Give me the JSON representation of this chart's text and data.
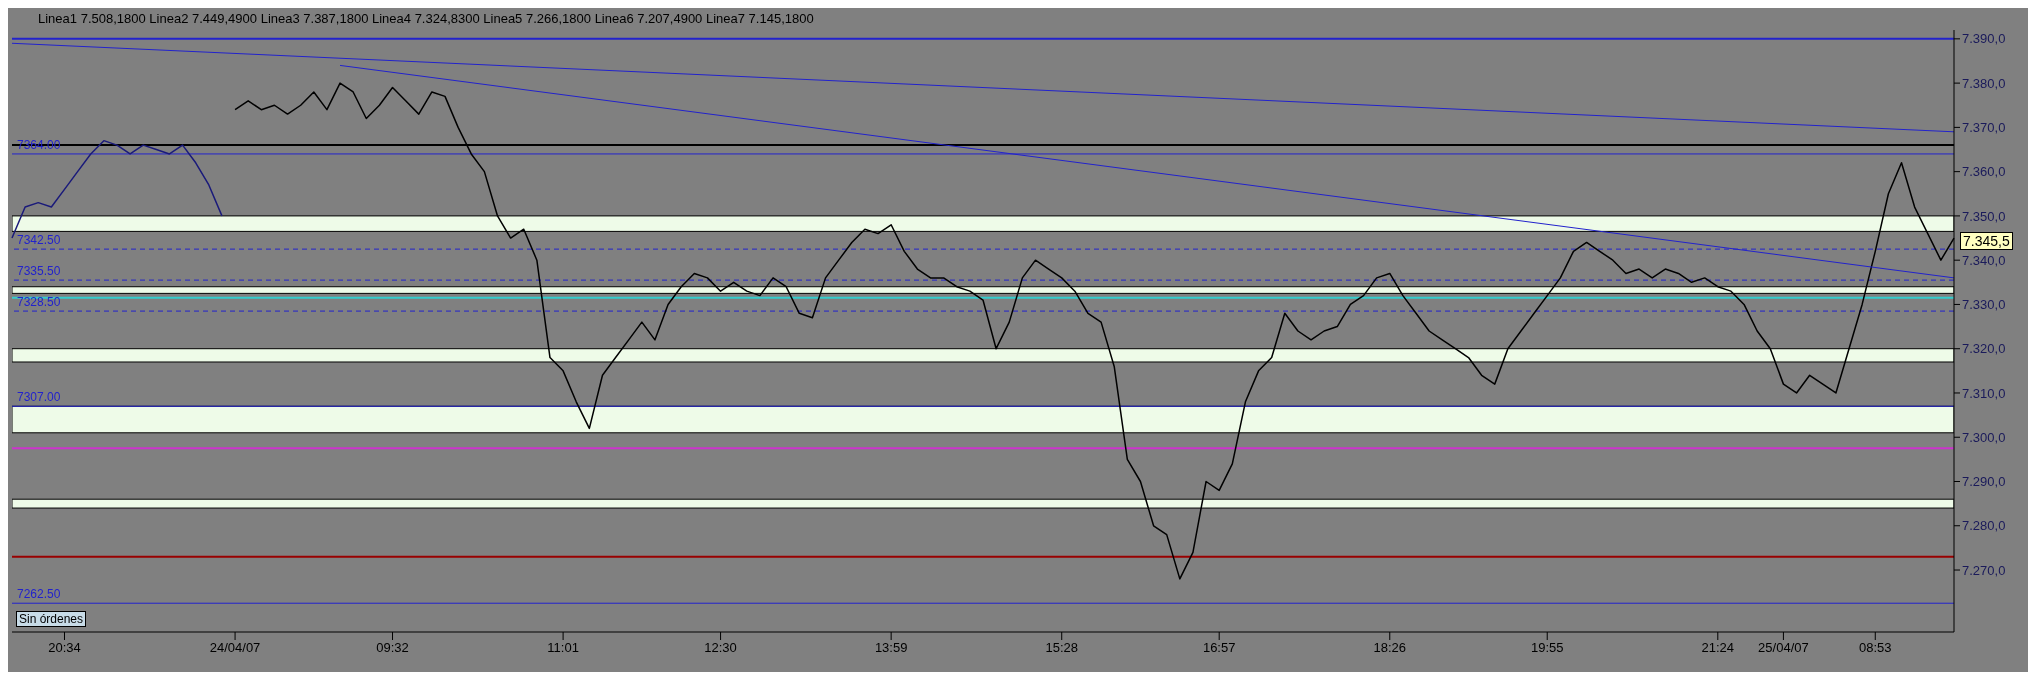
{
  "chart_data": {
    "type": "line",
    "categories": [
      null,
      null,
      null,
      null,
      "20:34",
      null,
      null,
      null,
      null,
      null,
      null,
      null,
      null,
      null,
      null,
      null,
      null,
      "24/04/07",
      null,
      null,
      null,
      null,
      null,
      null,
      null,
      null,
      null,
      null,
      null,
      "09:32",
      null,
      null,
      null,
      null,
      null,
      null,
      null,
      null,
      null,
      null,
      null,
      null,
      "11:01",
      null,
      null,
      null,
      null,
      null,
      null,
      null,
      null,
      null,
      null,
      null,
      "12:30",
      null,
      null,
      null,
      null,
      null,
      null,
      null,
      null,
      null,
      null,
      null,
      null,
      "13:59",
      null,
      null,
      null,
      null,
      null,
      null,
      null,
      null,
      null,
      null,
      null,
      null,
      "15:28",
      null,
      null,
      null,
      null,
      null,
      null,
      null,
      null,
      null,
      null,
      null,
      "16:57",
      null,
      null,
      null,
      null,
      null,
      null,
      null,
      null,
      null,
      null,
      null,
      null,
      "18:26",
      null,
      null,
      null,
      null,
      null,
      null,
      null,
      null,
      null,
      null,
      null,
      "19:55",
      null,
      null,
      null,
      null,
      null,
      null,
      null,
      null,
      null,
      null,
      null,
      null,
      "21:24",
      null,
      null,
      null,
      null,
      "25/04/07",
      null,
      null,
      null,
      null,
      null,
      null,
      "08:53",
      null,
      null,
      null,
      null,
      null,
      null
    ],
    "series": [
      {
        "color": "#1a1a7a",
        "values": [
          7345,
          7352,
          7353,
          7352,
          7356,
          7360,
          7364,
          7367,
          7366,
          7364,
          7366,
          7365,
          7364,
          7366,
          7362,
          7357,
          7350,
          null,
          null,
          null,
          null,
          null,
          null,
          null,
          null,
          null,
          null,
          null,
          null,
          null,
          null,
          null,
          null,
          null,
          null,
          null,
          null,
          null,
          null,
          null,
          null,
          null,
          null,
          null,
          null,
          null,
          null,
          null,
          null,
          null,
          null,
          null,
          null,
          null,
          null,
          null,
          null,
          null,
          null,
          null,
          null,
          null,
          null,
          null,
          null,
          null,
          null,
          null,
          null,
          null,
          null,
          null,
          null,
          null,
          null,
          null,
          null,
          null,
          null,
          null,
          null,
          null,
          null,
          null,
          null,
          null,
          null,
          null,
          null,
          null,
          null,
          null,
          null,
          null,
          null,
          null,
          null,
          null,
          null,
          null,
          null,
          null,
          null,
          null,
          null,
          null,
          null,
          null,
          null,
          null,
          null,
          null,
          null,
          null,
          null,
          null,
          null,
          null,
          null,
          null,
          null,
          null,
          null,
          null,
          null,
          null,
          null,
          null,
          null,
          null,
          null,
          null,
          null,
          null,
          null,
          null,
          null,
          null,
          null,
          null,
          null,
          null,
          null,
          null,
          null,
          null,
          null,
          null,
          null
        ]
      },
      {
        "color": "#000000",
        "values": [
          null,
          null,
          null,
          null,
          null,
          null,
          null,
          null,
          null,
          null,
          null,
          null,
          null,
          null,
          null,
          null,
          null,
          7374,
          7376,
          7374,
          7375,
          7373,
          7375,
          7378,
          7374,
          7380,
          7378,
          7372,
          7375,
          7379,
          7376,
          7373,
          7378,
          7377,
          7370,
          7364,
          7360,
          7350,
          7345,
          7347,
          7340,
          7318,
          7315,
          7308,
          7302,
          7314,
          7318,
          7322,
          7326,
          7322,
          7330,
          7334,
          7337,
          7336,
          7333,
          7335,
          7333,
          7332,
          7336,
          7334,
          7328,
          7327,
          7336,
          7340,
          7344,
          7347,
          7346,
          7348,
          7342,
          7338,
          7336,
          7336,
          7334,
          7333,
          7331,
          7320,
          7326,
          7336,
          7340,
          7338,
          7336,
          7333,
          7328,
          7326,
          7316,
          7295,
          7290,
          7280,
          7278,
          7268,
          7274,
          7290,
          7288,
          7294,
          7308,
          7315,
          7318,
          7328,
          7324,
          7322,
          7324,
          7325,
          7330,
          7332,
          7336,
          7337,
          7332,
          7328,
          7324,
          7322,
          7320,
          7318,
          7314,
          7312,
          7320,
          7324,
          7328,
          7332,
          7336,
          7342,
          7344,
          7342,
          7340,
          7337,
          7338,
          7336,
          7338,
          7337,
          7335,
          7336,
          7334,
          7333,
          7330,
          7324,
          7320,
          7312,
          7310,
          7314,
          7312,
          7310,
          7320,
          7330,
          7342,
          7355,
          7362,
          7352,
          7346,
          7340,
          7345
        ]
      },
      {
        "color": "#2222cc",
        "values": [
          7389,
          null,
          null,
          null,
          null,
          null,
          null,
          null,
          null,
          null,
          null,
          null,
          null,
          null,
          null,
          null,
          null,
          null,
          null,
          null,
          null,
          null,
          null,
          null,
          null,
          null,
          null,
          null,
          null,
          null,
          null,
          null,
          null,
          null,
          null,
          null,
          null,
          null,
          null,
          null,
          null,
          null,
          null,
          null,
          null,
          null,
          null,
          null,
          null,
          null,
          null,
          null,
          null,
          null,
          null,
          null,
          null,
          null,
          null,
          null,
          null,
          null,
          null,
          null,
          null,
          null,
          null,
          null,
          null,
          null,
          null,
          null,
          null,
          null,
          null,
          null,
          null,
          null,
          null,
          null,
          null,
          null,
          null,
          null,
          null,
          null,
          null,
          null,
          null,
          null,
          null,
          null,
          null,
          null,
          null,
          null,
          null,
          null,
          null,
          null,
          null,
          null,
          null,
          null,
          null,
          null,
          null,
          null,
          null,
          null,
          null,
          null,
          null,
          null,
          null,
          null,
          null,
          null,
          null,
          null,
          null,
          null,
          null,
          null,
          null,
          null,
          null,
          null,
          null,
          null,
          null,
          null,
          null,
          null,
          null,
          null,
          null,
          null,
          null,
          null,
          null,
          null,
          null,
          null,
          null,
          null,
          null,
          null,
          7369
        ]
      },
      {
        "color": "#2222cc",
        "values": [
          null,
          null,
          null,
          null,
          null,
          null,
          null,
          null,
          null,
          null,
          null,
          null,
          null,
          null,
          null,
          null,
          null,
          null,
          null,
          null,
          null,
          null,
          null,
          null,
          null,
          7384,
          null,
          null,
          null,
          null,
          null,
          null,
          null,
          null,
          null,
          null,
          null,
          null,
          null,
          null,
          null,
          null,
          null,
          null,
          null,
          null,
          null,
          null,
          null,
          null,
          null,
          null,
          null,
          null,
          null,
          null,
          null,
          null,
          null,
          null,
          null,
          null,
          null,
          null,
          null,
          null,
          null,
          null,
          null,
          null,
          null,
          null,
          null,
          null,
          null,
          null,
          null,
          null,
          null,
          null,
          null,
          null,
          null,
          null,
          null,
          null,
          null,
          null,
          null,
          null,
          null,
          null,
          null,
          null,
          null,
          null,
          null,
          null,
          null,
          null,
          null,
          null,
          null,
          null,
          null,
          null,
          null,
          null,
          null,
          null,
          null,
          null,
          null,
          null,
          null,
          null,
          null,
          null,
          null,
          null,
          null,
          null,
          null,
          null,
          null,
          null,
          null,
          null,
          null,
          null,
          null,
          null,
          null,
          null,
          null,
          null,
          null,
          null,
          null,
          null,
          null,
          null,
          null,
          null,
          null,
          null,
          null,
          null,
          7336
        ]
      }
    ],
    "ylim": [
      7256,
      7392
    ],
    "yticks": [
      {
        "value": 7270,
        "label": "7.270,0"
      },
      {
        "value": 7280,
        "label": "7.280,0"
      },
      {
        "value": 7290,
        "label": "7.290,0"
      },
      {
        "value": 7300,
        "label": "7.300,0"
      },
      {
        "value": 7310,
        "label": "7.310,0"
      },
      {
        "value": 7320,
        "label": "7.320,0"
      },
      {
        "value": 7330,
        "label": "7.330,0"
      },
      {
        "value": 7340,
        "label": "7.340,0"
      },
      {
        "value": 7350,
        "label": "7.350,0"
      },
      {
        "value": 7360,
        "label": "7.360,0"
      },
      {
        "value": 7370,
        "label": "7.370,0"
      },
      {
        "value": 7380,
        "label": "7.380,0"
      },
      {
        "value": 7390,
        "label": "7.390,0"
      }
    ],
    "ref_lines": [
      {
        "axis": "y",
        "value": 7390,
        "color": "#2222cc"
      },
      {
        "axis": "y",
        "value": 7366,
        "color": "#000000"
      },
      {
        "axis": "y",
        "value": 7331.5,
        "color": "#33cccc"
      },
      {
        "axis": "y",
        "value": 7297.5,
        "color": "#cc33cc"
      },
      {
        "axis": "y",
        "value": 7273,
        "color": "#990000"
      },
      {
        "axis": "y",
        "value": 7364,
        "label": "7364.00",
        "color": "#2222cc"
      },
      {
        "axis": "y",
        "value": 7342.5,
        "label": "7342.50",
        "color": "#2222cc",
        "line_style": "dashed"
      },
      {
        "axis": "y",
        "value": 7335.5,
        "label": "7335.50",
        "color": "#2222cc",
        "line_style": "dashed"
      },
      {
        "axis": "y",
        "value": 7328.5,
        "label": "7328.50",
        "color": "#2222cc",
        "line_style": "dashed"
      },
      {
        "axis": "y",
        "value": 7307,
        "label": "7307.00",
        "color": "#2222cc"
      },
      {
        "axis": "y",
        "value": 7262.5,
        "label": "7262.50",
        "color": "#2222cc"
      }
    ],
    "bands": [
      {
        "axis": "y",
        "from": 7346.5,
        "to": 7350,
        "color": "#eefbe8"
      },
      {
        "axis": "y",
        "from": 7332.5,
        "to": 7334,
        "color": "#eefbe8"
      },
      {
        "axis": "y",
        "from": 7317,
        "to": 7320,
        "color": "#eefbe8"
      },
      {
        "axis": "y",
        "from": 7301,
        "to": 7307,
        "color": "#eefbe8"
      },
      {
        "axis": "y",
        "from": 7284,
        "to": 7286,
        "color": "#eefbe8"
      }
    ],
    "annotations": [
      "Linea1 7.508,1800  Linea2 7.449,4900  Linea3 7.387,1800  Linea4 7.324,8300  Linea5 7.266,1800  Linea6 7.207,4900  Linea7 7.145,1800",
      "Sin órdenes",
      "7.345,5"
    ]
  }
}
